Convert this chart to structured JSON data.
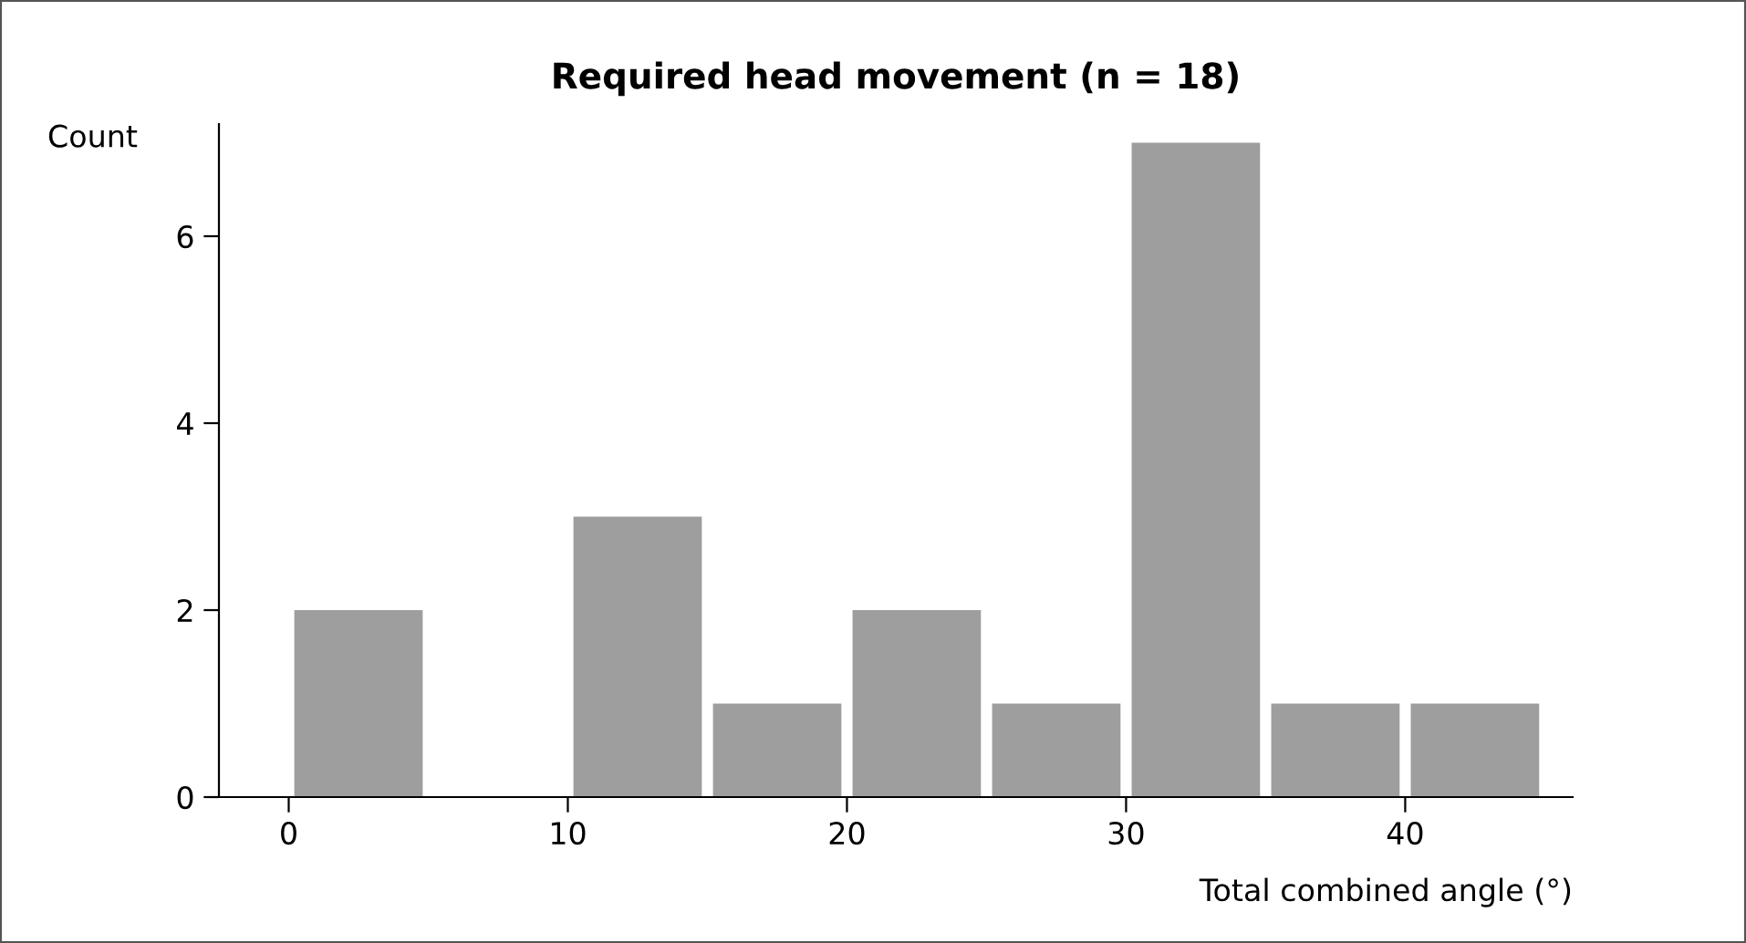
{
  "chart_data": {
    "type": "histogram",
    "title": "Required head movement (n = 18)",
    "xlabel": "Total combined angle (°)",
    "ylabel": "Count",
    "bins": [
      0,
      5,
      10,
      15,
      20,
      25,
      30,
      35,
      40,
      45
    ],
    "values": [
      2,
      0,
      3,
      1,
      2,
      1,
      7,
      1,
      1
    ],
    "color": "#9d9e9d",
    "xlim": [
      -2.5,
      46
    ],
    "xticks": [
      0,
      10,
      20,
      30,
      40
    ],
    "ylim": [
      0,
      7.2
    ],
    "yticks": [
      0,
      2,
      4,
      6
    ],
    "grid": false,
    "legend": false
  }
}
